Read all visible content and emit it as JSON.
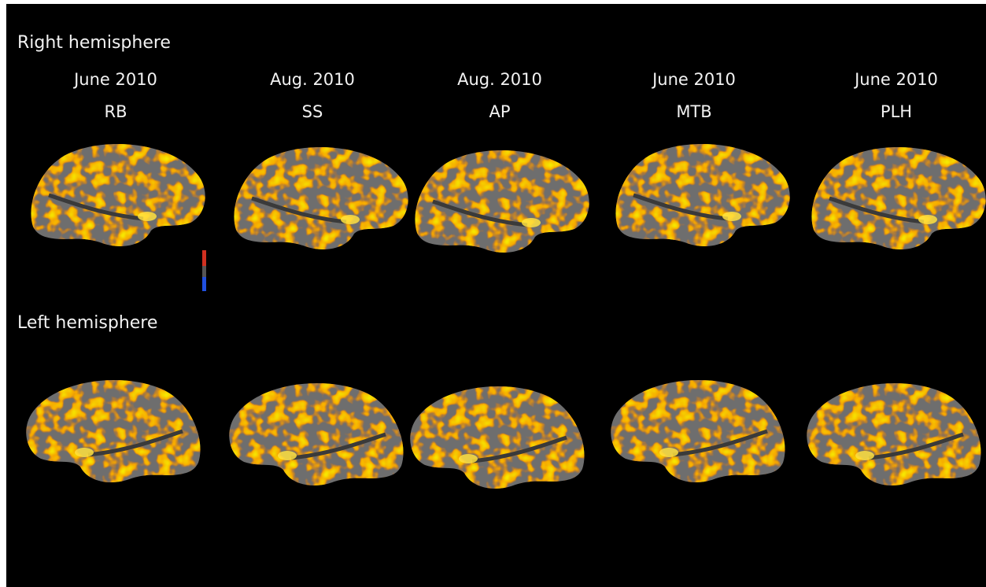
{
  "sections": [
    {
      "title": "Right hemisphere"
    },
    {
      "title": "Left hemisphere"
    }
  ],
  "subjects": [
    {
      "date": "June 2010",
      "id": "RB"
    },
    {
      "date": "Aug. 2010",
      "id": "SS"
    },
    {
      "date": "Aug. 2010",
      "id": "AP"
    },
    {
      "date": "June 2010",
      "id": "MTB"
    },
    {
      "date": "June 2010",
      "id": "PLH"
    }
  ]
}
